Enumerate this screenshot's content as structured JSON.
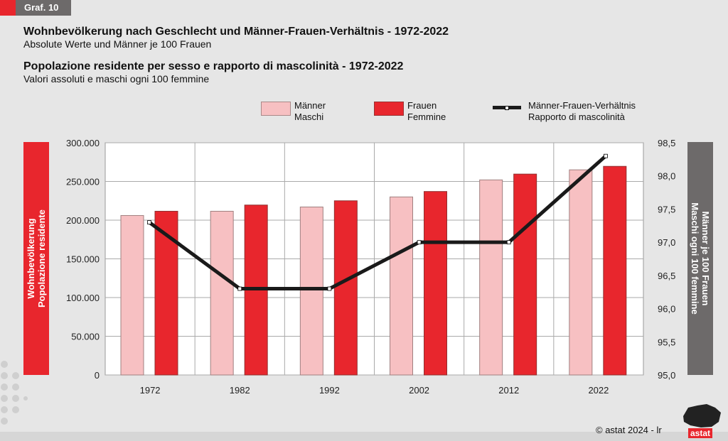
{
  "tag": "Graf. 10",
  "titles": {
    "de_title": "Wohnbevölkerung nach Geschlecht und Männer-Frauen-Verhältnis - 1972-2022",
    "de_sub": "Absolute Werte und Männer je 100 Frauen",
    "it_title": "Popolazione residente per sesso e rapporto di mascolinità - 1972-2022",
    "it_sub": "Valori assoluti e maschi ogni 100 femmine"
  },
  "legend": {
    "men_de": "Männer",
    "men_it": "Maschi",
    "women_de": "Frauen",
    "women_it": "Femmine",
    "ratio_de": "Männer-Frauen-Verhältnis",
    "ratio_it": "Rapporto di mascolinità"
  },
  "left_label": {
    "de": "Wohnbevölkerung",
    "it": "Popolazione residente"
  },
  "right_label": {
    "de": "Männer je 100 Frauen",
    "it": "Maschi ogni 100 femmine"
  },
  "footer": "©  astat 2024 - lr",
  "logo": "astat",
  "colors": {
    "men": "#f7c0c2",
    "women": "#e8262d",
    "ratio": "#1a1a1a",
    "left_box": "#e8262d",
    "right_box": "#6d6a6a"
  },
  "chart_data": {
    "type": "bar",
    "categories": [
      "1972",
      "1982",
      "1992",
      "2002",
      "2012",
      "2022"
    ],
    "series": [
      {
        "name": "Männer / Maschi",
        "type": "bar",
        "axis": "left",
        "values": [
          206000,
          211500,
          217000,
          230000,
          252000,
          265000
        ]
      },
      {
        "name": "Frauen / Femmine",
        "type": "bar",
        "axis": "left",
        "values": [
          211500,
          219500,
          225000,
          237000,
          259500,
          269500
        ]
      },
      {
        "name": "Männer-Frauen-Verhältnis / Rapporto di mascolinità",
        "type": "line",
        "axis": "right",
        "values": [
          97.3,
          96.3,
          96.3,
          97.0,
          97.0,
          98.3
        ]
      }
    ],
    "ylim": [
      0,
      300000
    ],
    "yticks": [
      "0",
      "50.000",
      "100.000",
      "150.000",
      "200.000",
      "250.000",
      "300.000"
    ],
    "y2lim": [
      95,
      98.5
    ],
    "y2ticks": [
      "95,0",
      "95,5",
      "96,0",
      "96,5",
      "97,0",
      "97,5",
      "98,0",
      "98,5"
    ],
    "ylabel": "Wohnbevölkerung / Popolazione residente",
    "y2label": "Männer je 100 Frauen / Maschi ogni 100 femmine",
    "grid": true,
    "legend": "top"
  }
}
